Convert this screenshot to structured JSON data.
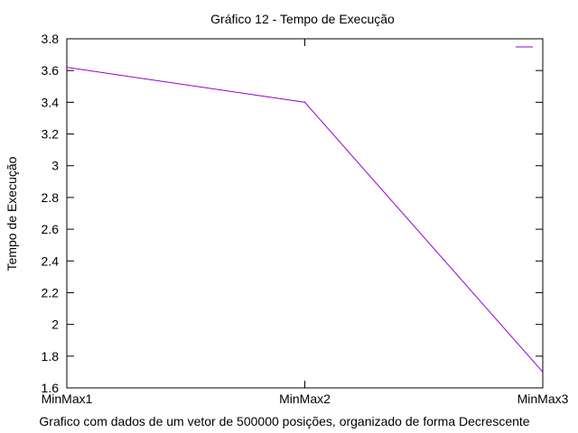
{
  "chart_data": {
    "type": "line",
    "title": "Gráfico 12 - Tempo de Execução",
    "xlabel": "Grafico com dados de um vetor de 500000 posições, organizado de forma Decrescente",
    "ylabel": "Tempo de Execução",
    "categories": [
      "MinMax1",
      "MinMax2",
      "MinMax3"
    ],
    "series": [
      {
        "values": [
          3.62,
          3.4,
          1.7
        ],
        "color": "#9400d3"
      }
    ],
    "ylim": [
      1.6,
      3.8
    ],
    "yticks": [
      "1.6",
      "1.8",
      "2",
      "2.2",
      "2.4",
      "2.6",
      "2.8",
      "3",
      "3.2",
      "3.4",
      "3.6",
      "3.8"
    ],
    "grid": false,
    "legend": "top-right"
  }
}
